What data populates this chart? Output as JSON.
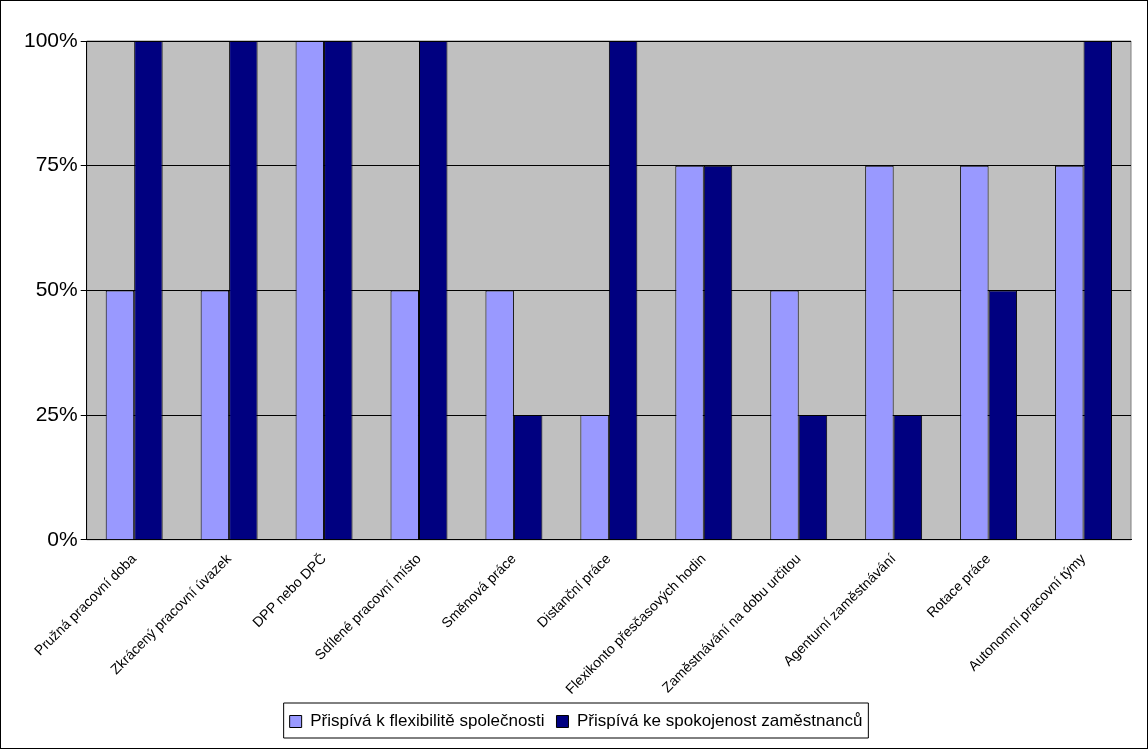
{
  "chart_data": {
    "type": "bar",
    "categories": [
      "Pružná pracovní doba",
      "Zkrácený pracovní úvazek",
      "DPP nebo DPČ",
      "Sdílené pracovní místo",
      "Směnová práce",
      "Distanční práce",
      "Flexikonto přesčasových hodin",
      "Zaměstnávání na dobu určitou",
      "Agenturní zaměstnávání",
      "Rotace práce",
      "Autonomní pracovní týmy"
    ],
    "series": [
      {
        "name": "Přispívá k flexibilitě společnosti",
        "color": "#9999ff",
        "values": [
          50,
          50,
          100,
          50,
          50,
          25,
          75,
          50,
          75,
          75,
          75
        ]
      },
      {
        "name": "Přispívá ke spokojenost zaměstnanců",
        "color": "#000080",
        "values": [
          100,
          100,
          100,
          100,
          25,
          100,
          75,
          25,
          25,
          50,
          100
        ]
      }
    ],
    "ylim": [
      0,
      100
    ],
    "yticks": [
      {
        "value": 0,
        "label": "0%"
      },
      {
        "value": 25,
        "label": "25%"
      },
      {
        "value": 50,
        "label": "50%"
      },
      {
        "value": 75,
        "label": "75%"
      },
      {
        "value": 100,
        "label": "100%"
      }
    ],
    "grid": "y",
    "legend": "bottom"
  }
}
